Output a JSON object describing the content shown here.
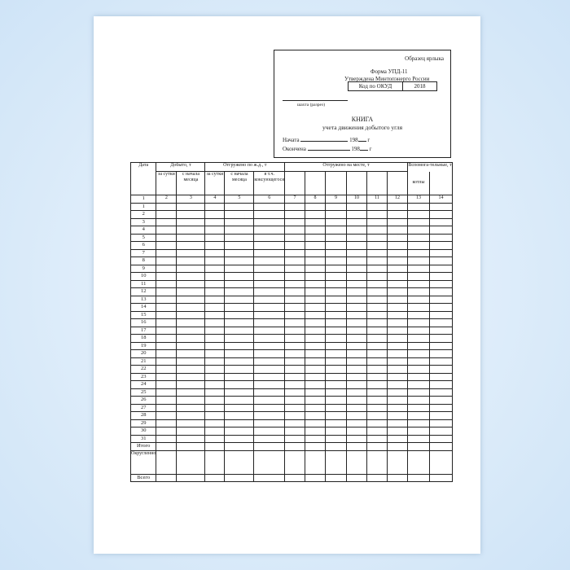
{
  "stamp": {
    "sample": "Образец ярлыка",
    "form": "Форма УПД-11",
    "approved": "Утверждена Минтопэнерго России",
    "code_label": "Код по ОКУД",
    "code_value": "2018",
    "mine_caption": "шахта (разрез)",
    "title": "КНИГА",
    "subtitle": "учета движения добытого угля",
    "start_label": "Начата",
    "end_label": "Окончена",
    "year": "198",
    "year_suffix": "г"
  },
  "table": {
    "h_date": "Дата",
    "h_mined": "Добыто, т",
    "h_rail": "Отгружено по ж.д., т",
    "h_local": "Отгружено на месте, т",
    "h_aux": "Вспомога-тельные, т",
    "h_day1": "за сутки",
    "h_month1": "с начала месяца",
    "h_day2": "за сутки",
    "h_month2": "с начала месяца",
    "h_coking": "в т.ч. коксующегося",
    "h_boilers": "котлы",
    "col_numbers": [
      "1",
      "2",
      "3",
      "4",
      "5",
      "6",
      "7",
      "8",
      "9",
      "10",
      "11",
      "12",
      "13",
      "14"
    ],
    "days": [
      "1",
      "2",
      "3",
      "4",
      "5",
      "6",
      "7",
      "8",
      "9",
      "10",
      "11",
      "12",
      "13",
      "14",
      "15",
      "16",
      "17",
      "18",
      "19",
      "20",
      "21",
      "22",
      "23",
      "24",
      "25",
      "26",
      "27",
      "28",
      "29",
      "30",
      "31"
    ],
    "total": "Итого",
    "rounded": "Округленно",
    "grand_total": "Всего"
  }
}
